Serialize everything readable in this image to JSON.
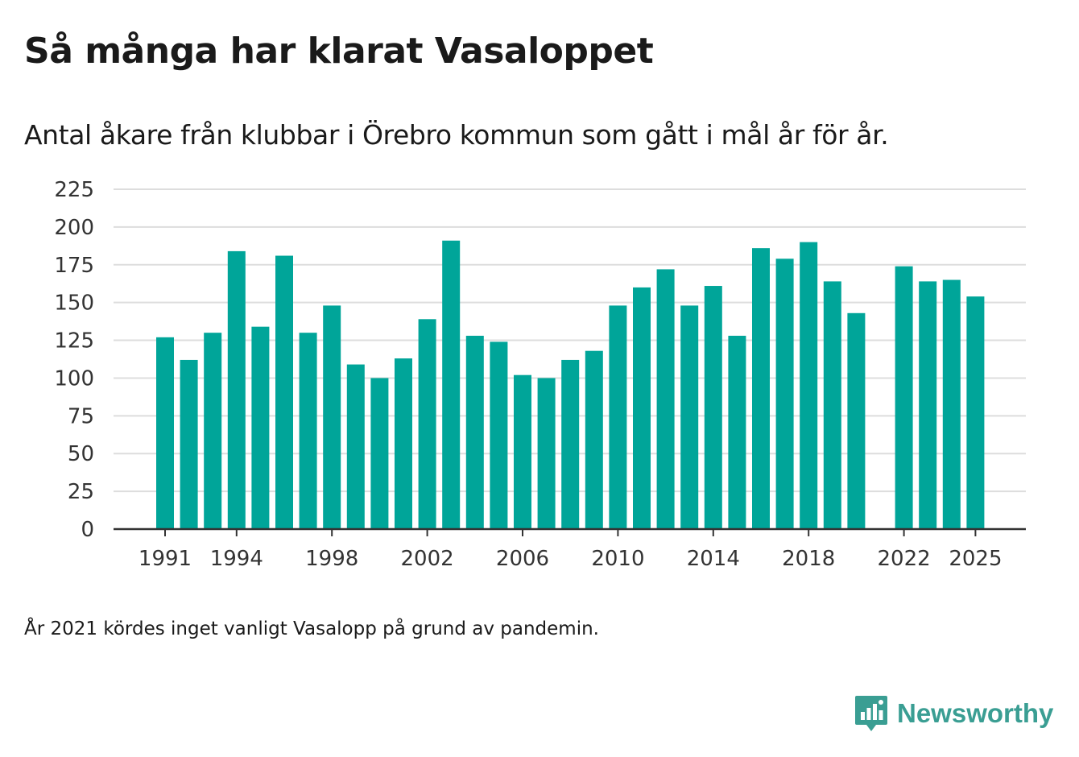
{
  "title": "Så många har klarat Vasaloppet",
  "subtitle": "Antal åkare från klubbar i Örebro kommun som gått i mål år för år.",
  "footnote": "År 2021 kördes inget vanligt Vasalopp på grund av pandemin.",
  "brand": {
    "name": "Newsworthy",
    "icon": "newsworthy-logo-icon"
  },
  "colors": {
    "bar": "#00a599",
    "grid": "#dddddd",
    "axis": "#333333",
    "brand": "#3a9e93"
  },
  "chart_data": {
    "type": "bar",
    "title": "Så många har klarat Vasaloppet",
    "xlabel": "",
    "ylabel": "",
    "ylim": [
      0,
      225
    ],
    "yticks": [
      0,
      25,
      50,
      75,
      100,
      125,
      150,
      175,
      200,
      225
    ],
    "xticks": [
      "1991",
      "1994",
      "1998",
      "2002",
      "2006",
      "2010",
      "2014",
      "2018",
      "2022",
      "2025"
    ],
    "grid": true,
    "categories": [
      "1991",
      "1992",
      "1993",
      "1994",
      "1995",
      "1996",
      "1997",
      "1998",
      "1999",
      "2000",
      "2001",
      "2002",
      "2003",
      "2004",
      "2005",
      "2006",
      "2007",
      "2008",
      "2009",
      "2010",
      "2011",
      "2012",
      "2013",
      "2014",
      "2015",
      "2016",
      "2017",
      "2018",
      "2019",
      "2020",
      "2021",
      "2022",
      "2023",
      "2024",
      "2025"
    ],
    "values": [
      127,
      112,
      130,
      184,
      134,
      181,
      130,
      148,
      109,
      100,
      113,
      139,
      191,
      128,
      124,
      102,
      100,
      112,
      118,
      148,
      160,
      172,
      148,
      161,
      128,
      186,
      179,
      190,
      164,
      143,
      null,
      174,
      164,
      165,
      154
    ]
  }
}
